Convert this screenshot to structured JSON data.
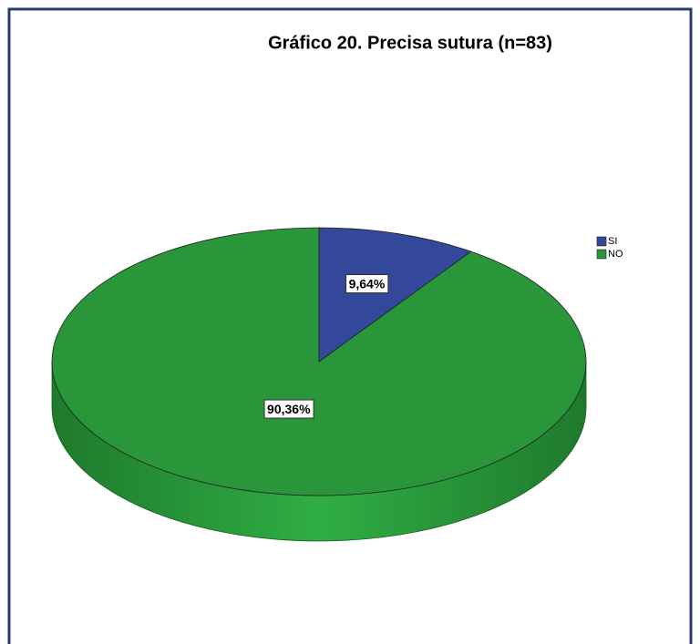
{
  "chart_data": {
    "type": "pie",
    "title": "Gráfico 20. Precisa sutura (n=83)",
    "categories": [
      "SI",
      "NO"
    ],
    "values": [
      9.64,
      90.36
    ],
    "value_labels": [
      "9,64%",
      "90,36%"
    ],
    "colors": [
      "#33489a",
      "#29963a"
    ],
    "legend": "right"
  }
}
